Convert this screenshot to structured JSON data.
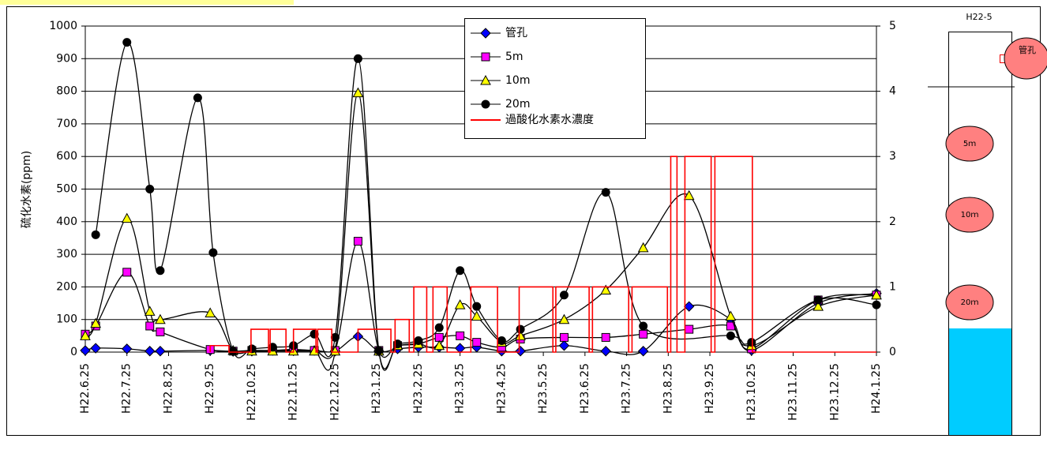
{
  "chart_data": {
    "type": "line",
    "ylabel": "硫化水素(ppm)",
    "xlim": [
      0,
      19
    ],
    "xticks": [
      {
        "value": 0,
        "label": "H22.6.25"
      },
      {
        "value": 1,
        "label": "H22.7.25"
      },
      {
        "value": 2,
        "label": "H22.8.25"
      },
      {
        "value": 3,
        "label": "H22.9.25"
      },
      {
        "value": 4,
        "label": "H22.10.25"
      },
      {
        "value": 5,
        "label": "H22.11.25"
      },
      {
        "value": 6,
        "label": "H22.12.25"
      },
      {
        "value": 7,
        "label": "H23.1.25"
      },
      {
        "value": 8,
        "label": "H23.2.25"
      },
      {
        "value": 9,
        "label": "H23.3.25"
      },
      {
        "value": 10,
        "label": "H23.4.25"
      },
      {
        "value": 11,
        "label": "H23.5.25"
      },
      {
        "value": 12,
        "label": "H23.6.25"
      },
      {
        "value": 13,
        "label": "H23.7.25"
      },
      {
        "value": 14,
        "label": "H23.8.25"
      },
      {
        "value": 15,
        "label": "H23.9.25"
      },
      {
        "value": 16,
        "label": "H23.10.25"
      },
      {
        "value": 17,
        "label": "H23.11.25"
      },
      {
        "value": 18,
        "label": "H23.12.25"
      },
      {
        "value": 19,
        "label": "H24.1.25"
      }
    ],
    "ylim": [
      0,
      1000
    ],
    "yticks": [
      0,
      100,
      200,
      300,
      400,
      500,
      600,
      700,
      800,
      900,
      1000
    ],
    "y2lim": [
      0,
      5
    ],
    "y2ticks": [
      0,
      1,
      2,
      3,
      4,
      5
    ],
    "grid": true,
    "series": [
      {
        "name": "管孔",
        "color": "#0000ff",
        "marker": "diamond",
        "smooth": true,
        "x": [
          0,
          0.25,
          1,
          1.55,
          1.8,
          3.0,
          3.55,
          4.0,
          4.5,
          5.0,
          5.5,
          6.0,
          6.55,
          7.05,
          7.5,
          8.0,
          8.5,
          9.0,
          9.4,
          10.0,
          10.45,
          11.5,
          12.5,
          13.4,
          14.5,
          15.5,
          16.0,
          17.6,
          19
        ],
        "values": [
          5,
          12,
          10,
          3,
          3,
          5,
          2,
          3,
          5,
          5,
          5,
          3,
          48,
          3,
          10,
          15,
          15,
          12,
          15,
          3,
          3,
          20,
          3,
          3,
          140,
          100,
          5,
          150,
          180
        ]
      },
      {
        "name": "5m",
        "color": "#ff00ff",
        "marker": "square",
        "smooth": true,
        "x": [
          0,
          0.25,
          1,
          1.55,
          1.8,
          3.0,
          3.55,
          4.0,
          4.5,
          5.0,
          5.5,
          6.0,
          6.55,
          7.05,
          7.5,
          8.0,
          8.5,
          9.0,
          9.4,
          10.0,
          10.45,
          11.5,
          12.5,
          13.4,
          14.5,
          15.5,
          16.0,
          17.6,
          19
        ],
        "values": [
          55,
          80,
          245,
          80,
          62,
          8,
          3,
          5,
          5,
          8,
          5,
          5,
          340,
          5,
          20,
          25,
          45,
          50,
          30,
          15,
          40,
          45,
          45,
          55,
          70,
          80,
          10,
          160,
          175
        ]
      },
      {
        "name": "10m",
        "color": "#ffff00",
        "marker": "triangle",
        "smooth": true,
        "x": [
          0,
          0.25,
          1,
          1.55,
          1.8,
          3.0,
          3.55,
          4.0,
          4.5,
          5.0,
          5.5,
          6.0,
          6.55,
          7.05,
          7.5,
          8.0,
          8.5,
          9.0,
          9.4,
          10.0,
          10.45,
          11.5,
          12.5,
          13.4,
          14.5,
          15.5,
          16.0,
          17.6,
          19
        ],
        "values": [
          50,
          88,
          410,
          125,
          100,
          120,
          5,
          3,
          3,
          3,
          3,
          3,
          795,
          3,
          20,
          25,
          20,
          145,
          110,
          30,
          50,
          100,
          190,
          320,
          480,
          110,
          20,
          140,
          175
        ]
      },
      {
        "name": "20m",
        "color": "#000000",
        "marker": "circle",
        "smooth": true,
        "x": [
          0.25,
          1,
          1.55,
          1.8,
          2.7,
          3.07,
          3.55,
          4.0,
          4.5,
          5.0,
          5.5,
          6.0,
          6.55,
          7.05,
          7.5,
          8.0,
          8.5,
          9.0,
          9.4,
          10.0,
          10.45,
          11.5,
          12.5,
          13.4,
          15.5,
          16.0,
          17.6,
          19
        ],
        "values": [
          360,
          950,
          500,
          250,
          780,
          305,
          3,
          10,
          15,
          20,
          55,
          45,
          900,
          5,
          25,
          35,
          75,
          250,
          140,
          35,
          70,
          175,
          490,
          80,
          50,
          30,
          160,
          145
        ]
      },
      {
        "name": "過酸化水素水濃度",
        "color": "#ff0000",
        "marker": "none",
        "smooth": false,
        "axis": "y2",
        "x": [
          3.0,
          3.0,
          3.45,
          3.45,
          3.98,
          3.98,
          4.4,
          4.4,
          4.44,
          4.44,
          4.82,
          4.82,
          5.0,
          5.0,
          5.54,
          5.54,
          5.58,
          5.58,
          5.92,
          5.92,
          6.55,
          6.55,
          7.34,
          7.34,
          7.44,
          7.44,
          7.78,
          7.78,
          7.89,
          7.89,
          8.2,
          8.2,
          8.35,
          8.35,
          8.69,
          8.69,
          9.26,
          9.26,
          9.9,
          9.9,
          10.42,
          10.42,
          11.23,
          11.23,
          11.3,
          11.3,
          12.1,
          12.1,
          12.18,
          12.18,
          13.05,
          13.05,
          13.13,
          13.13,
          13.98,
          13.98,
          14.06,
          14.06,
          14.21,
          14.21,
          14.4,
          14.4,
          15.03,
          15.03,
          15.12,
          15.12,
          16.02,
          16.02,
          19
        ],
        "values": [
          0,
          0.1,
          0.1,
          0,
          0,
          0.35,
          0.35,
          0,
          0,
          0.35,
          0.35,
          0,
          0,
          0.35,
          0.35,
          0,
          0,
          0.35,
          0.35,
          0,
          0,
          0.35,
          0.35,
          0,
          0,
          0.5,
          0.5,
          0,
          0,
          1,
          1,
          0,
          0,
          1,
          1,
          0,
          0,
          1,
          1,
          0,
          0,
          1,
          1,
          0,
          0,
          1,
          1,
          0,
          0,
          1,
          1,
          0,
          0,
          1,
          1,
          0,
          0,
          3,
          3,
          0,
          0,
          3,
          3,
          0,
          0,
          3,
          3,
          0,
          0
        ]
      }
    ]
  },
  "diagram": {
    "title": "H22-5",
    "labels": [
      "管孔",
      "5ｍ",
      "10ｍ",
      "20ｍ"
    ]
  }
}
